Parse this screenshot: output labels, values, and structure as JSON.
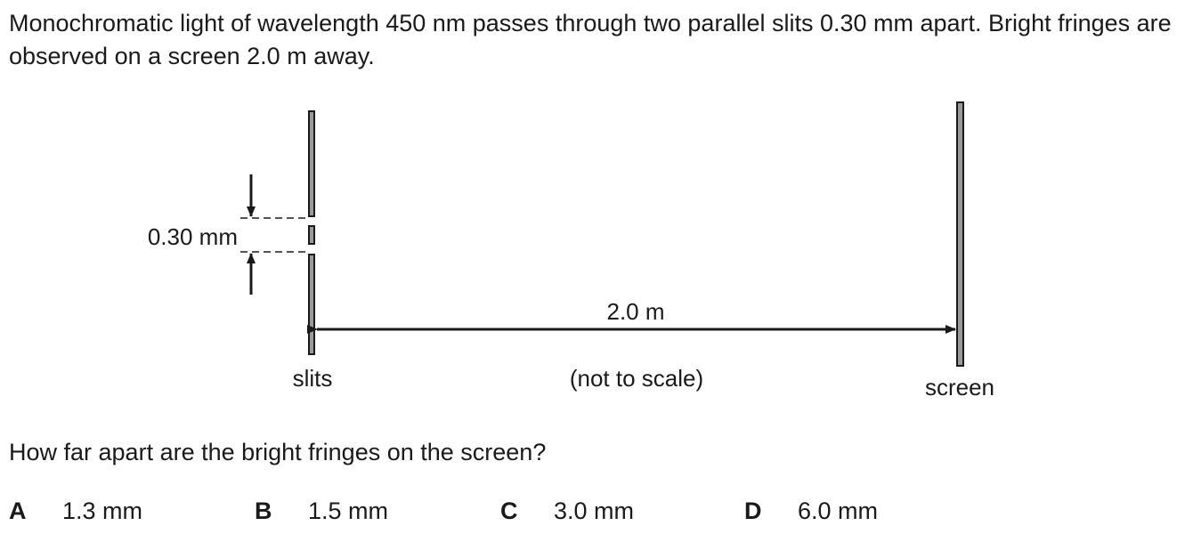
{
  "question": {
    "stem": "Monochromatic light of wavelength 450 nm passes through two parallel slits 0.30 mm apart. Bright fringes are observed on a screen 2.0 m away.",
    "prompt": "How far apart are the bright fringes on the screen?"
  },
  "diagram": {
    "slit_separation_label": "0.30 mm",
    "distance_label": "2.0 m",
    "slits_label": "slits",
    "scale_note": "(not to scale)",
    "screen_label": "screen"
  },
  "options": [
    {
      "letter": "A",
      "text": "1.3 mm"
    },
    {
      "letter": "B",
      "text": "1.5 mm"
    },
    {
      "letter": "C",
      "text": "3.0 mm"
    },
    {
      "letter": "D",
      "text": "6.0 mm"
    }
  ]
}
